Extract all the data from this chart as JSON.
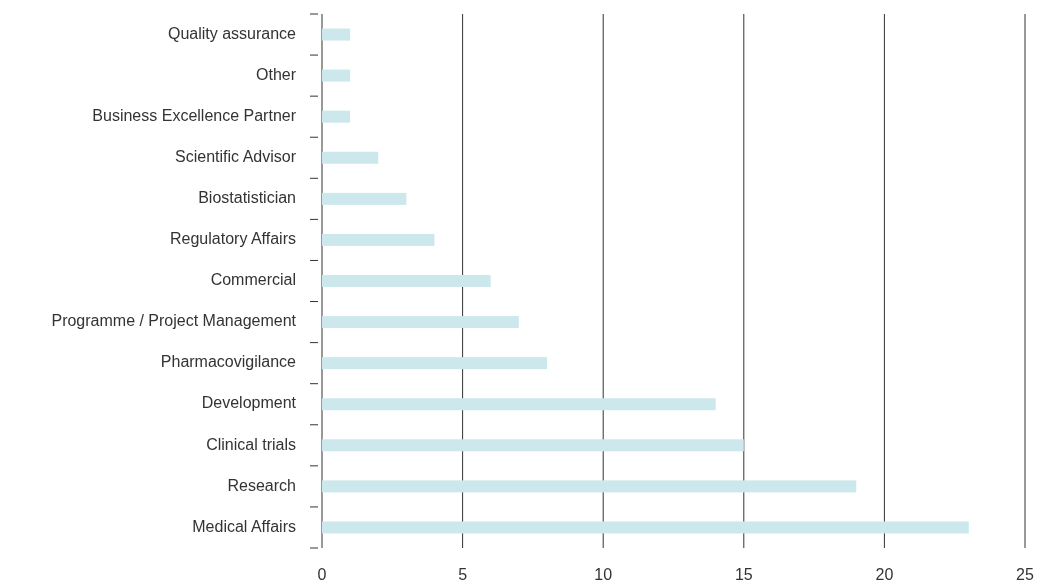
{
  "chart_data": {
    "type": "bar",
    "orientation": "horizontal",
    "categories": [
      "Quality assurance",
      "Other",
      "Business Excellence Partner",
      "Scientific Advisor",
      "Biostatistician",
      "Regulatory Affairs",
      "Commercial",
      "Programme / Project Management",
      "Pharmacovigilance",
      "Development",
      "Clinical trials",
      "Research",
      "Medical Affairs"
    ],
    "values": [
      1,
      1,
      1,
      2,
      3,
      4,
      6,
      7,
      8,
      14,
      15,
      19,
      23
    ],
    "color": "#cce8ec",
    "xlim": [
      0,
      25
    ],
    "xticks": [
      0,
      5,
      10,
      15,
      20,
      25
    ],
    "grid": "x"
  }
}
